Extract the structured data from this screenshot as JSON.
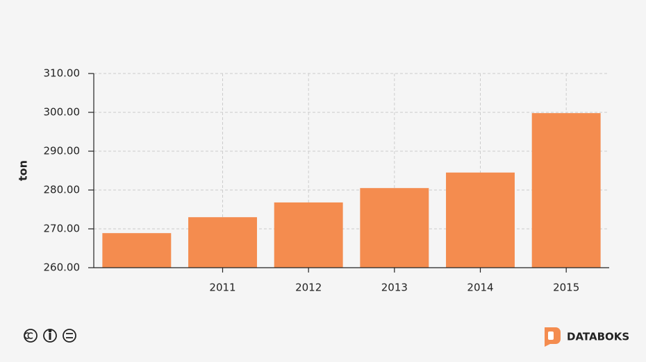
{
  "chart_data": {
    "type": "bar",
    "y_label": "ton",
    "categories": [
      null,
      "2011",
      "2012",
      "2013",
      "2014",
      "2015"
    ],
    "values": [
      268.9,
      273.0,
      276.8,
      280.5,
      284.5,
      299.8
    ],
    "color": "#f48c4f",
    "ylim": [
      260,
      310
    ],
    "yticks": [
      {
        "value": 260,
        "label": "260.00"
      },
      {
        "value": 270,
        "label": "270.00"
      },
      {
        "value": 280,
        "label": "280.00"
      },
      {
        "value": 290,
        "label": "290.00"
      },
      {
        "value": 300,
        "label": "300.00"
      },
      {
        "value": 310,
        "label": "310.00"
      }
    ],
    "grid": true
  },
  "footer": {
    "brand": "DATABOKS"
  }
}
